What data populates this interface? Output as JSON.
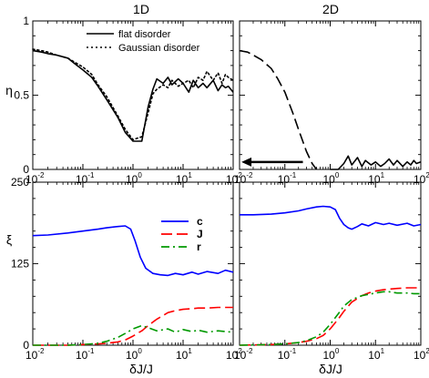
{
  "chart_data": [
    {
      "type": "line",
      "panel": "top-left",
      "title": "1D",
      "ylabel": "η",
      "xscale": "log",
      "xlim": [
        0.01,
        100
      ],
      "ylim": [
        0,
        1
      ],
      "yticks": [
        0,
        0.5,
        1
      ],
      "legend": "top-right",
      "series": [
        {
          "name": "flat disorder",
          "style": "solid",
          "color": "#000000",
          "x": [
            0.01,
            0.015,
            0.02,
            0.03,
            0.05,
            0.07,
            0.1,
            0.15,
            0.2,
            0.3,
            0.5,
            0.7,
            1.0,
            1.5,
            2.0,
            2.5,
            3.0,
            4.0,
            5.0,
            6.0,
            8.0,
            10,
            13,
            16,
            20,
            25,
            30,
            40,
            50,
            60,
            70,
            80,
            100
          ],
          "y": [
            0.8,
            0.79,
            0.78,
            0.77,
            0.75,
            0.71,
            0.67,
            0.62,
            0.56,
            0.47,
            0.35,
            0.25,
            0.19,
            0.19,
            0.42,
            0.54,
            0.61,
            0.58,
            0.62,
            0.57,
            0.61,
            0.58,
            0.52,
            0.6,
            0.55,
            0.58,
            0.55,
            0.6,
            0.53,
            0.57,
            0.55,
            0.56,
            0.52
          ]
        },
        {
          "name": "Gaussian disorder",
          "style": "dotted",
          "color": "#000000",
          "x": [
            0.01,
            0.015,
            0.02,
            0.03,
            0.05,
            0.07,
            0.1,
            0.15,
            0.2,
            0.3,
            0.5,
            0.7,
            1.0,
            1.5,
            2.0,
            2.5,
            3.0,
            4.0,
            5.0,
            6.0,
            8.0,
            10,
            13,
            16,
            20,
            25,
            30,
            40,
            50,
            60,
            70,
            80,
            100
          ],
          "y": [
            0.81,
            0.8,
            0.79,
            0.77,
            0.75,
            0.72,
            0.69,
            0.64,
            0.57,
            0.49,
            0.36,
            0.27,
            0.2,
            0.22,
            0.38,
            0.51,
            0.54,
            0.57,
            0.55,
            0.6,
            0.56,
            0.58,
            0.6,
            0.55,
            0.62,
            0.6,
            0.66,
            0.6,
            0.65,
            0.58,
            0.64,
            0.62,
            0.6
          ]
        }
      ]
    },
    {
      "type": "line",
      "panel": "top-right",
      "title": "2D",
      "xscale": "log",
      "xlim": [
        0.01,
        100
      ],
      "ylim": [
        0,
        1
      ],
      "annotation": "left-pointing arrow",
      "series": [
        {
          "style": "dashed",
          "color": "#000000",
          "x": [
            0.01,
            0.015,
            0.02,
            0.03,
            0.05,
            0.07,
            0.1,
            0.15,
            0.2,
            0.3,
            0.4,
            0.5
          ],
          "y": [
            0.8,
            0.79,
            0.77,
            0.74,
            0.68,
            0.61,
            0.52,
            0.38,
            0.27,
            0.12,
            0.04,
            0.0
          ]
        },
        {
          "style": "solid",
          "color": "#000000",
          "x": [
            1.0,
            1.5,
            2.0,
            2.5,
            3.0,
            4.0,
            5.0,
            6.0,
            8.0,
            10,
            13,
            16,
            20,
            25,
            30,
            40,
            50,
            60,
            70,
            80,
            100
          ],
          "y": [
            0.0,
            0.0,
            0.04,
            0.09,
            0.03,
            0.08,
            0.02,
            0.06,
            0.03,
            0.05,
            0.02,
            0.04,
            0.07,
            0.03,
            0.06,
            0.02,
            0.05,
            0.03,
            0.06,
            0.04,
            0.05
          ]
        }
      ]
    },
    {
      "type": "line",
      "panel": "bottom-left",
      "ylabel": "ξ",
      "xlabel": "δJ/J",
      "xscale": "log",
      "xlim": [
        0.01,
        100
      ],
      "ylim": [
        0,
        250
      ],
      "yticks": [
        0,
        125,
        250
      ],
      "legend": "top-right",
      "series": [
        {
          "name": "c",
          "style": "solid",
          "color": "#0000ff",
          "x": [
            0.01,
            0.02,
            0.05,
            0.1,
            0.2,
            0.3,
            0.5,
            0.7,
            0.9,
            1.1,
            1.4,
            1.8,
            2.5,
            3.5,
            5,
            7,
            10,
            15,
            20,
            30,
            50,
            70,
            100
          ],
          "y": [
            168,
            169,
            172,
            175,
            178,
            180,
            182,
            183,
            178,
            160,
            135,
            118,
            110,
            108,
            107,
            110,
            108,
            112,
            109,
            113,
            110,
            115,
            112
          ]
        },
        {
          "name": "J",
          "style": "dashed",
          "color": "#ff0000",
          "x": [
            0.01,
            0.05,
            0.1,
            0.2,
            0.3,
            0.5,
            0.7,
            1.0,
            1.5,
            2,
            3,
            5,
            7,
            10,
            15,
            20,
            30,
            50,
            70,
            100
          ],
          "y": [
            0,
            0,
            1,
            2,
            3,
            5,
            8,
            14,
            22,
            30,
            40,
            50,
            53,
            55,
            56,
            57,
            57,
            58,
            58,
            58
          ]
        },
        {
          "name": "r",
          "style": "dash-dot",
          "color": "#009900",
          "x": [
            0.01,
            0.05,
            0.1,
            0.2,
            0.3,
            0.5,
            0.7,
            1.0,
            1.5,
            2,
            3,
            5,
            7,
            10,
            15,
            20,
            30,
            50,
            70,
            100
          ],
          "y": [
            0,
            0,
            1,
            3,
            6,
            12,
            18,
            25,
            30,
            27,
            22,
            25,
            20,
            24,
            21,
            23,
            20,
            22,
            21,
            20
          ]
        }
      ]
    },
    {
      "type": "line",
      "panel": "bottom-right",
      "xlabel": "δJ/J",
      "xscale": "log",
      "xlim": [
        0.01,
        100
      ],
      "ylim": [
        0,
        250
      ],
      "series": [
        {
          "name": "c",
          "style": "solid",
          "color": "#0000ff",
          "x": [
            0.01,
            0.02,
            0.05,
            0.1,
            0.2,
            0.3,
            0.5,
            0.7,
            1.0,
            1.3,
            1.6,
            2,
            2.5,
            3,
            4,
            5,
            7,
            10,
            15,
            20,
            30,
            50,
            70,
            100
          ],
          "y": [
            200,
            200,
            201,
            203,
            206,
            209,
            212,
            213,
            212,
            208,
            195,
            185,
            180,
            178,
            182,
            186,
            183,
            188,
            185,
            187,
            184,
            187,
            183,
            185
          ]
        },
        {
          "name": "J",
          "style": "dashed",
          "color": "#ff0000",
          "x": [
            0.01,
            0.05,
            0.1,
            0.2,
            0.3,
            0.5,
            0.7,
            1.0,
            1.5,
            2,
            3,
            5,
            7,
            10,
            15,
            20,
            30,
            50,
            70,
            100
          ],
          "y": [
            0,
            1,
            2,
            4,
            6,
            10,
            15,
            25,
            40,
            52,
            66,
            76,
            80,
            83,
            85,
            86,
            87,
            88,
            88,
            88
          ]
        },
        {
          "name": "r",
          "style": "dash-dot",
          "color": "#009900",
          "x": [
            0.01,
            0.05,
            0.1,
            0.2,
            0.3,
            0.5,
            0.7,
            1.0,
            1.5,
            2,
            3,
            5,
            7,
            10,
            15,
            20,
            30,
            50,
            70,
            100
          ],
          "y": [
            0,
            1,
            2,
            4,
            7,
            13,
            20,
            32,
            48,
            60,
            70,
            76,
            78,
            80,
            82,
            82,
            80,
            80,
            79,
            79
          ]
        }
      ]
    }
  ],
  "axis_labels": {
    "col_left": "1D",
    "col_right": "2D",
    "eta": "η",
    "xi": "ξ",
    "xlabel": "δJ/J",
    "y_top_ticks": [
      "0",
      "0.5",
      "1"
    ],
    "y_bottom_ticks": [
      "0",
      "125",
      "250"
    ],
    "x_tick_base": "10",
    "x_tick_exps": [
      "-2",
      "-1",
      "0",
      "1",
      "2"
    ]
  },
  "legends": {
    "top": [
      "flat disorder",
      "Gaussian disorder"
    ],
    "bottom": [
      "c",
      "J",
      "r"
    ]
  }
}
